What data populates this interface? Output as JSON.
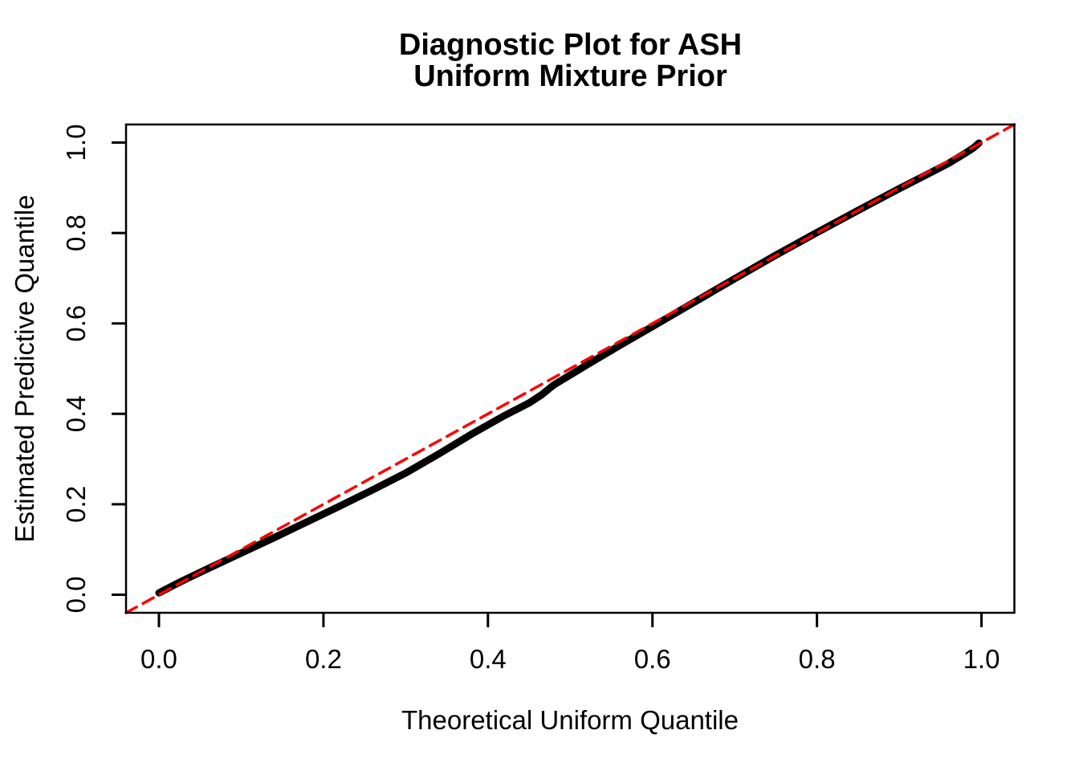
{
  "figure": {
    "background": "#ffffff",
    "title": {
      "line1": "Diagnostic Plot for ASH",
      "line2": "Uniform Mixture Prior"
    }
  },
  "chart_data": {
    "type": "line",
    "title": "Diagnostic Plot for ASH / Uniform Mixture Prior",
    "xlabel": "Theoretical Uniform Quantile",
    "ylabel": "Estimated Predictive Quantile",
    "xlim": [
      -0.04,
      1.04
    ],
    "ylim": [
      -0.04,
      1.04
    ],
    "grid": false,
    "legend": null,
    "x_ticks": {
      "values": [
        0.0,
        0.2,
        0.4,
        0.6,
        0.8,
        1.0
      ],
      "labels": [
        "0.0",
        "0.2",
        "0.4",
        "0.6",
        "0.8",
        "1.0"
      ]
    },
    "y_ticks": {
      "values": [
        0.0,
        0.2,
        0.4,
        0.6,
        0.8,
        1.0
      ],
      "labels": [
        "0.0",
        "0.2",
        "0.4",
        "0.6",
        "0.8",
        "1.0"
      ]
    },
    "series": [
      {
        "name": "estimated-predictive-quantile-curve",
        "style": "thick-solid-point-band",
        "color": "#000000",
        "stroke_width": 9,
        "points": [
          [
            0.0,
            0.004
          ],
          [
            0.015,
            0.018
          ],
          [
            0.03,
            0.032
          ],
          [
            0.06,
            0.058
          ],
          [
            0.1,
            0.092
          ],
          [
            0.14,
            0.126
          ],
          [
            0.18,
            0.161
          ],
          [
            0.22,
            0.196
          ],
          [
            0.26,
            0.232
          ],
          [
            0.3,
            0.269
          ],
          [
            0.34,
            0.311
          ],
          [
            0.38,
            0.355
          ],
          [
            0.42,
            0.396
          ],
          [
            0.45,
            0.424
          ],
          [
            0.465,
            0.442
          ],
          [
            0.48,
            0.464
          ],
          [
            0.52,
            0.508
          ],
          [
            0.56,
            0.551
          ],
          [
            0.6,
            0.593
          ],
          [
            0.65,
            0.646
          ],
          [
            0.7,
            0.699
          ],
          [
            0.75,
            0.751
          ],
          [
            0.8,
            0.801
          ],
          [
            0.85,
            0.85
          ],
          [
            0.9,
            0.898
          ],
          [
            0.93,
            0.926
          ],
          [
            0.96,
            0.954
          ],
          [
            0.98,
            0.976
          ],
          [
            0.99,
            0.988
          ],
          [
            0.994,
            0.994
          ],
          [
            0.997,
            0.999
          ]
        ]
      },
      {
        "name": "reference-diagonal-y-equals-x",
        "style": "dashed",
        "color": "#FF0000",
        "stroke_width": 3.5,
        "dash": "15 9",
        "points": [
          [
            -0.04,
            -0.04
          ],
          [
            1.04,
            1.04
          ]
        ]
      }
    ]
  }
}
